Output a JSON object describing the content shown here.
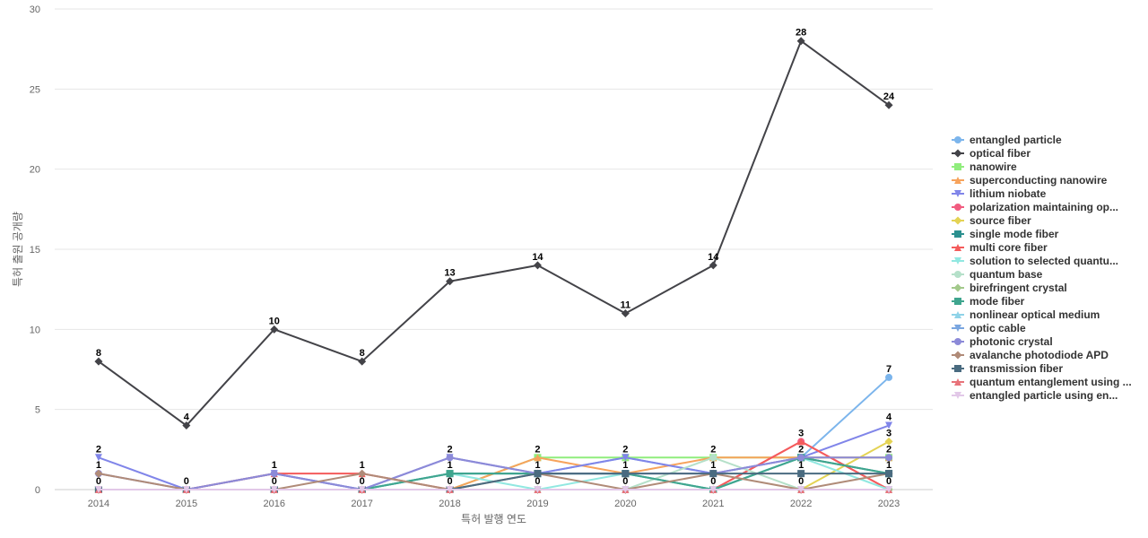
{
  "chart_data": {
    "type": "line",
    "title": "",
    "xlabel": "특허 발행 연도",
    "ylabel": "특허 출원 공개량",
    "ylim": [
      0,
      30
    ],
    "yticks": [
      0,
      5,
      10,
      15,
      20,
      25,
      30
    ],
    "categories": [
      "2014",
      "2015",
      "2016",
      "2017",
      "2018",
      "2019",
      "2020",
      "2021",
      "2022",
      "2023"
    ],
    "grid": "horizontal",
    "legend_position": "right",
    "series": [
      {
        "name": "entangled particle",
        "color": "#7cb5ec",
        "marker": "circle",
        "values": [
          0,
          0,
          1,
          0,
          1,
          1,
          2,
          1,
          2,
          7
        ]
      },
      {
        "name": "optical fiber",
        "color": "#434348",
        "marker": "diamond",
        "values": [
          8,
          4,
          10,
          8,
          13,
          14,
          11,
          14,
          28,
          24
        ]
      },
      {
        "name": "nanowire",
        "color": "#90ed7d",
        "marker": "square",
        "values": [
          0,
          0,
          0,
          0,
          0,
          2,
          2,
          2,
          2,
          2
        ]
      },
      {
        "name": "superconducting nanowire",
        "color": "#f7a35c",
        "marker": "triangle",
        "values": [
          0,
          0,
          0,
          0,
          0,
          2,
          1,
          2,
          2,
          2
        ]
      },
      {
        "name": "lithium niobate",
        "color": "#8085e9",
        "marker": "triangle-down",
        "values": [
          2,
          0,
          1,
          0,
          2,
          1,
          2,
          1,
          2,
          4
        ]
      },
      {
        "name": "polarization maintaining op...",
        "color": "#f15c80",
        "marker": "circle",
        "values": [
          0,
          0,
          0,
          0,
          0,
          0,
          0,
          0,
          3,
          0
        ]
      },
      {
        "name": "source fiber",
        "color": "#e4d354",
        "marker": "diamond",
        "values": [
          0,
          0,
          0,
          0,
          0,
          0,
          0,
          0,
          0,
          3
        ]
      },
      {
        "name": "single mode fiber",
        "color": "#2b908f",
        "marker": "square",
        "values": [
          0,
          0,
          0,
          0,
          1,
          1,
          1,
          0,
          2,
          1
        ]
      },
      {
        "name": "multi core fiber",
        "color": "#f45b5b",
        "marker": "triangle",
        "values": [
          0,
          0,
          1,
          1,
          0,
          0,
          0,
          0,
          3,
          0
        ]
      },
      {
        "name": "solution to selected quantu...",
        "color": "#91e8e1",
        "marker": "triangle-down",
        "values": [
          0,
          0,
          0,
          0,
          1,
          0,
          1,
          0,
          2,
          0
        ]
      },
      {
        "name": "quantum base",
        "color": "#b5e0c9",
        "marker": "circle",
        "values": [
          0,
          0,
          0,
          0,
          0,
          0,
          0,
          2,
          0,
          0
        ]
      },
      {
        "name": "birefringent crystal",
        "color": "#a3c98b",
        "marker": "diamond",
        "values": [
          0,
          0,
          0,
          0,
          0,
          0,
          0,
          0,
          0,
          0
        ]
      },
      {
        "name": "mode fiber",
        "color": "#3fa58e",
        "marker": "square",
        "values": [
          0,
          0,
          0,
          0,
          1,
          1,
          1,
          0,
          2,
          1
        ]
      },
      {
        "name": "nonlinear optical medium",
        "color": "#8fd3e8",
        "marker": "triangle",
        "values": [
          0,
          0,
          0,
          0,
          0,
          0,
          0,
          0,
          0,
          0
        ]
      },
      {
        "name": "optic cable",
        "color": "#7aa6e0",
        "marker": "triangle-down",
        "values": [
          0,
          0,
          0,
          0,
          0,
          0,
          0,
          0,
          0,
          0
        ]
      },
      {
        "name": "photonic crystal",
        "color": "#8c8ad8",
        "marker": "circle",
        "values": [
          1,
          0,
          1,
          0,
          2,
          1,
          1,
          1,
          2,
          2
        ]
      },
      {
        "name": "avalanche photodiode APD",
        "color": "#b08b78",
        "marker": "diamond",
        "values": [
          1,
          0,
          0,
          1,
          0,
          1,
          0,
          1,
          0,
          1
        ]
      },
      {
        "name": "transmission fiber",
        "color": "#4a6b80",
        "marker": "square",
        "values": [
          0,
          0,
          0,
          0,
          0,
          1,
          1,
          1,
          1,
          1
        ]
      },
      {
        "name": "quantum entanglement using ...",
        "color": "#e8737a",
        "marker": "triangle",
        "values": [
          0,
          0,
          0,
          0,
          0,
          0,
          0,
          0,
          0,
          0
        ]
      },
      {
        "name": "entangled particle using en...",
        "color": "#e2c8e8",
        "marker": "triangle-down",
        "values": [
          0,
          0,
          0,
          0,
          0,
          0,
          0,
          0,
          0,
          0
        ]
      }
    ],
    "data_labels": [
      {
        "x": "2014",
        "y": 8,
        "text": "8"
      },
      {
        "x": "2015",
        "y": 4,
        "text": "4"
      },
      {
        "x": "2016",
        "y": 10,
        "text": "10"
      },
      {
        "x": "2017",
        "y": 8,
        "text": "8"
      },
      {
        "x": "2018",
        "y": 13,
        "text": "13"
      },
      {
        "x": "2019",
        "y": 14,
        "text": "14"
      },
      {
        "x": "2020",
        "y": 11,
        "text": "11"
      },
      {
        "x": "2021",
        "y": 14,
        "text": "14"
      },
      {
        "x": "2022",
        "y": 28,
        "text": "28"
      },
      {
        "x": "2023",
        "y": 24,
        "text": "24"
      },
      {
        "x": "2014",
        "y": 2,
        "text": "2"
      },
      {
        "x": "2014",
        "y": 1,
        "text": "1"
      },
      {
        "x": "2014",
        "y": 0,
        "text": "0"
      },
      {
        "x": "2015",
        "y": 0,
        "text": "0"
      },
      {
        "x": "2016",
        "y": 1,
        "text": "1"
      },
      {
        "x": "2016",
        "y": 0,
        "text": "0"
      },
      {
        "x": "2017",
        "y": 1,
        "text": "1"
      },
      {
        "x": "2017",
        "y": 0,
        "text": "0"
      },
      {
        "x": "2018",
        "y": 2,
        "text": "2"
      },
      {
        "x": "2018",
        "y": 1,
        "text": "1"
      },
      {
        "x": "2018",
        "y": 0,
        "text": "0"
      },
      {
        "x": "2019",
        "y": 2,
        "text": "2"
      },
      {
        "x": "2019",
        "y": 1,
        "text": "1"
      },
      {
        "x": "2019",
        "y": 0,
        "text": "0"
      },
      {
        "x": "2020",
        "y": 2,
        "text": "2"
      },
      {
        "x": "2020",
        "y": 1,
        "text": "1"
      },
      {
        "x": "2020",
        "y": 0,
        "text": "0"
      },
      {
        "x": "2021",
        "y": 2,
        "text": "2"
      },
      {
        "x": "2021",
        "y": 1,
        "text": "1"
      },
      {
        "x": "2021",
        "y": 0,
        "text": "0"
      },
      {
        "x": "2022",
        "y": 3,
        "text": "3"
      },
      {
        "x": "2022",
        "y": 2,
        "text": "2"
      },
      {
        "x": "2022",
        "y": 1,
        "text": "1"
      },
      {
        "x": "2022",
        "y": 0,
        "text": "0"
      },
      {
        "x": "2023",
        "y": 7,
        "text": "7"
      },
      {
        "x": "2023",
        "y": 4,
        "text": "4"
      },
      {
        "x": "2023",
        "y": 3,
        "text": "3"
      },
      {
        "x": "2023",
        "y": 2,
        "text": "2"
      },
      {
        "x": "2023",
        "y": 1,
        "text": "1"
      },
      {
        "x": "2023",
        "y": 0,
        "text": "0"
      }
    ]
  }
}
